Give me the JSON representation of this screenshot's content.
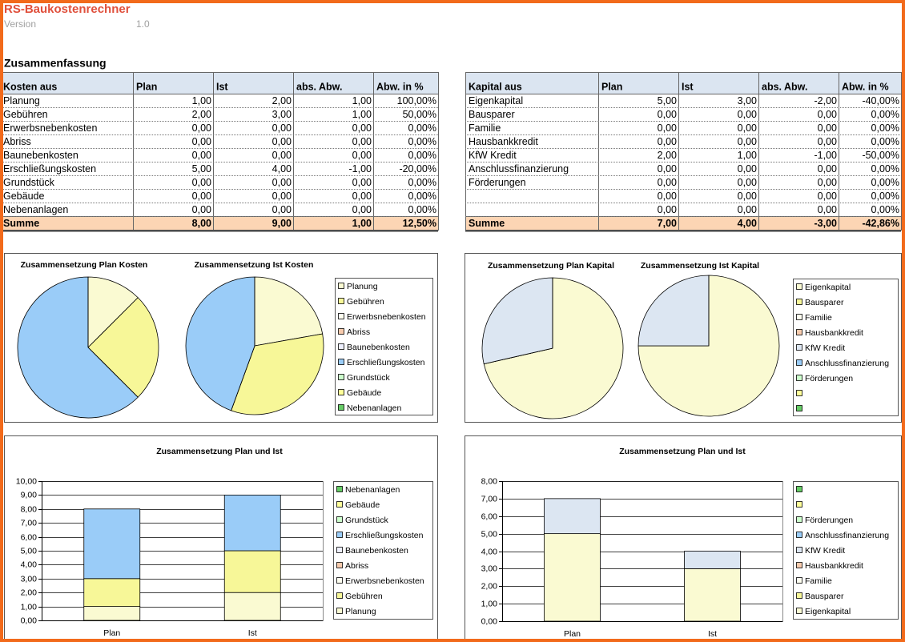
{
  "header": {
    "title": "RS-Baukostenrechner",
    "version_label": "Version",
    "version": "1.0"
  },
  "section_title": "Zusammenfassung",
  "tables": [
    {
      "columns": [
        "Kosten aus",
        "Plan",
        "Ist",
        "abs. Abw.",
        "Abw. in %"
      ],
      "rows": [
        [
          "Planung",
          "1,00",
          "2,00",
          "1,00",
          "100,00%"
        ],
        [
          "Gebühren",
          "2,00",
          "3,00",
          "1,00",
          "50,00%"
        ],
        [
          "Erwerbsnebenkosten",
          "0,00",
          "0,00",
          "0,00",
          "0,00%"
        ],
        [
          "Abriss",
          "0,00",
          "0,00",
          "0,00",
          "0,00%"
        ],
        [
          "Baunebenkosten",
          "0,00",
          "0,00",
          "0,00",
          "0,00%"
        ],
        [
          "Erschließungskosten",
          "5,00",
          "4,00",
          "-1,00",
          "-20,00%"
        ],
        [
          "Grundstück",
          "0,00",
          "0,00",
          "0,00",
          "0,00%"
        ],
        [
          "Gebäude",
          "0,00",
          "0,00",
          "0,00",
          "0,00%"
        ],
        [
          "Nebenanlagen",
          "0,00",
          "0,00",
          "0,00",
          "0,00%"
        ]
      ],
      "total": [
        "Summe",
        "8,00",
        "9,00",
        "1,00",
        "12,50%"
      ]
    },
    {
      "columns": [
        "Kapital aus",
        "Plan",
        "Ist",
        "abs. Abw.",
        "Abw. in %"
      ],
      "rows": [
        [
          "Eigenkapital",
          "5,00",
          "3,00",
          "-2,00",
          "-40,00%"
        ],
        [
          "Bausparer",
          "0,00",
          "0,00",
          "0,00",
          "0,00%"
        ],
        [
          "Familie",
          "0,00",
          "0,00",
          "0,00",
          "0,00%"
        ],
        [
          "Hausbankkredit",
          "0,00",
          "0,00",
          "0,00",
          "0,00%"
        ],
        [
          "KfW Kredit",
          "2,00",
          "1,00",
          "-1,00",
          "-50,00%"
        ],
        [
          "Anschlussfinanzierung",
          "0,00",
          "0,00",
          "0,00",
          "0,00%"
        ],
        [
          "Förderungen",
          "0,00",
          "0,00",
          "0,00",
          "0,00%"
        ],
        [
          null,
          "0,00",
          "0,00",
          "0,00",
          "0,00%"
        ],
        [
          null,
          "0,00",
          "0,00",
          "0,00",
          "0,00%"
        ]
      ],
      "total": [
        "Summe",
        "7,00",
        "4,00",
        "-3,00",
        "-42,86%"
      ]
    }
  ],
  "chart_data": [
    {
      "type": "pie",
      "title": "Zusammensetzung Plan Kosten",
      "categories": [
        "Planung",
        "Gebühren",
        "Erwerbsnebenkosten",
        "Abriss",
        "Baunebenkosten",
        "Erschließungskosten",
        "Grundstück",
        "Gebäude",
        "Nebenanlagen"
      ],
      "values": [
        1,
        2,
        0,
        0,
        0,
        5,
        0,
        0,
        0
      ],
      "colors": [
        "#fafad2",
        "#f7f798",
        "#fffff0",
        "#f8cbad",
        "#eef0ff",
        "#9accf8",
        "#ccffcc",
        "#ffff99",
        "#66cc66"
      ],
      "legend": "right"
    },
    {
      "type": "pie",
      "title": "Zusammensetzung Ist Kosten",
      "values": [
        2,
        3,
        0,
        0,
        0,
        4,
        0,
        0,
        0
      ],
      "colors": [
        "#fafad2",
        "#f7f798",
        "#fffff0",
        "#f8cbad",
        "#eef0ff",
        "#9accf8",
        "#ccffcc",
        "#ffff99",
        "#66cc66"
      ]
    },
    {
      "type": "bar",
      "stacked": true,
      "title": "Zusammensetzung Plan und Ist",
      "categories": [
        "Plan",
        "Ist"
      ],
      "series": [
        {
          "name": "Planung",
          "color": "#fafad2",
          "values": [
            1,
            2
          ]
        },
        {
          "name": "Gebühren",
          "color": "#f7f798",
          "values": [
            2,
            3
          ]
        },
        {
          "name": "Erwerbsnebenkosten",
          "color": "#fffff0",
          "values": [
            0,
            0
          ]
        },
        {
          "name": "Abriss",
          "color": "#f8cbad",
          "values": [
            0,
            0
          ]
        },
        {
          "name": "Baunebenkosten",
          "color": "#eef0ff",
          "values": [
            0,
            0
          ]
        },
        {
          "name": "Erschließungskosten",
          "color": "#9accf8",
          "values": [
            5,
            4
          ]
        },
        {
          "name": "Grundstück",
          "color": "#ccffcc",
          "values": [
            0,
            0
          ]
        },
        {
          "name": "Gebäude",
          "color": "#ffff99",
          "values": [
            0,
            0
          ]
        },
        {
          "name": "Nebenanlagen",
          "color": "#66cc66",
          "values": [
            0,
            0
          ]
        }
      ],
      "ylim": [
        0,
        10
      ],
      "yticks": [
        {
          "value": 0,
          "label": "0,00"
        },
        {
          "value": 1,
          "label": "1,00"
        },
        {
          "value": 2,
          "label": "2,00"
        },
        {
          "value": 3,
          "label": "3,00"
        },
        {
          "value": 4,
          "label": "4,00"
        },
        {
          "value": 5,
          "label": "5,00"
        },
        {
          "value": 6,
          "label": "6,00"
        },
        {
          "value": 7,
          "label": "7,00"
        },
        {
          "value": 8,
          "label": "8,00"
        },
        {
          "value": 9,
          "label": "9,00"
        },
        {
          "value": 10,
          "label": "10,00"
        }
      ],
      "grid": true,
      "legend": "right"
    },
    {
      "type": "pie",
      "title": "Zusammensetzung Plan Kapital",
      "categories": [
        "Eigenkapital",
        "Bausparer",
        "Familie",
        "Hausbankkredit",
        "KfW Kredit",
        "Anschlussfinanzierung",
        "Förderungen",
        null,
        null
      ],
      "values": [
        5,
        0,
        0,
        0,
        2,
        0,
        0,
        0,
        0
      ],
      "colors": [
        "#fafad2",
        "#f7f798",
        "#fffff0",
        "#f8cbad",
        "#dce6f2",
        "#9accf8",
        "#ccffcc",
        "#ffff99",
        "#66cc66"
      ],
      "legend": "right"
    },
    {
      "type": "pie",
      "title": "Zusammensetzung Ist Kapital",
      "values": [
        3,
        0,
        0,
        0,
        1,
        0,
        0,
        0,
        0
      ],
      "colors": [
        "#fafad2",
        "#f7f798",
        "#fffff0",
        "#f8cbad",
        "#dce6f2",
        "#9accf8",
        "#ccffcc",
        "#ffff99",
        "#66cc66"
      ]
    },
    {
      "type": "bar",
      "stacked": true,
      "title": "Zusammensetzung Plan und Ist",
      "categories": [
        "Plan",
        "Ist"
      ],
      "series": [
        {
          "name": "Eigenkapital",
          "color": "#fafad2",
          "values": [
            5,
            3
          ]
        },
        {
          "name": "Bausparer",
          "color": "#f7f798",
          "values": [
            0,
            0
          ]
        },
        {
          "name": "Familie",
          "color": "#fffff0",
          "values": [
            0,
            0
          ]
        },
        {
          "name": "Hausbankkredit",
          "color": "#f8cbad",
          "values": [
            0,
            0
          ]
        },
        {
          "name": "KfW Kredit",
          "color": "#dce6f2",
          "values": [
            2,
            1
          ]
        },
        {
          "name": "Anschlussfinanzierung",
          "color": "#9accf8",
          "values": [
            0,
            0
          ]
        },
        {
          "name": "Förderungen",
          "color": "#ccffcc",
          "values": [
            0,
            0
          ]
        },
        {
          "name": null,
          "color": "#ffff99",
          "values": [
            0,
            0
          ]
        },
        {
          "name": null,
          "color": "#66cc66",
          "values": [
            0,
            0
          ]
        }
      ],
      "ylim": [
        0,
        8
      ],
      "yticks": [
        {
          "value": 0,
          "label": "0,00"
        },
        {
          "value": 1,
          "label": "1,00"
        },
        {
          "value": 2,
          "label": "2,00"
        },
        {
          "value": 3,
          "label": "3,00"
        },
        {
          "value": 4,
          "label": "4,00"
        },
        {
          "value": 5,
          "label": "5,00"
        },
        {
          "value": 6,
          "label": "6,00"
        },
        {
          "value": 7,
          "label": "7,00"
        },
        {
          "value": 8,
          "label": "8,00"
        }
      ],
      "grid": true,
      "legend": "right"
    }
  ]
}
